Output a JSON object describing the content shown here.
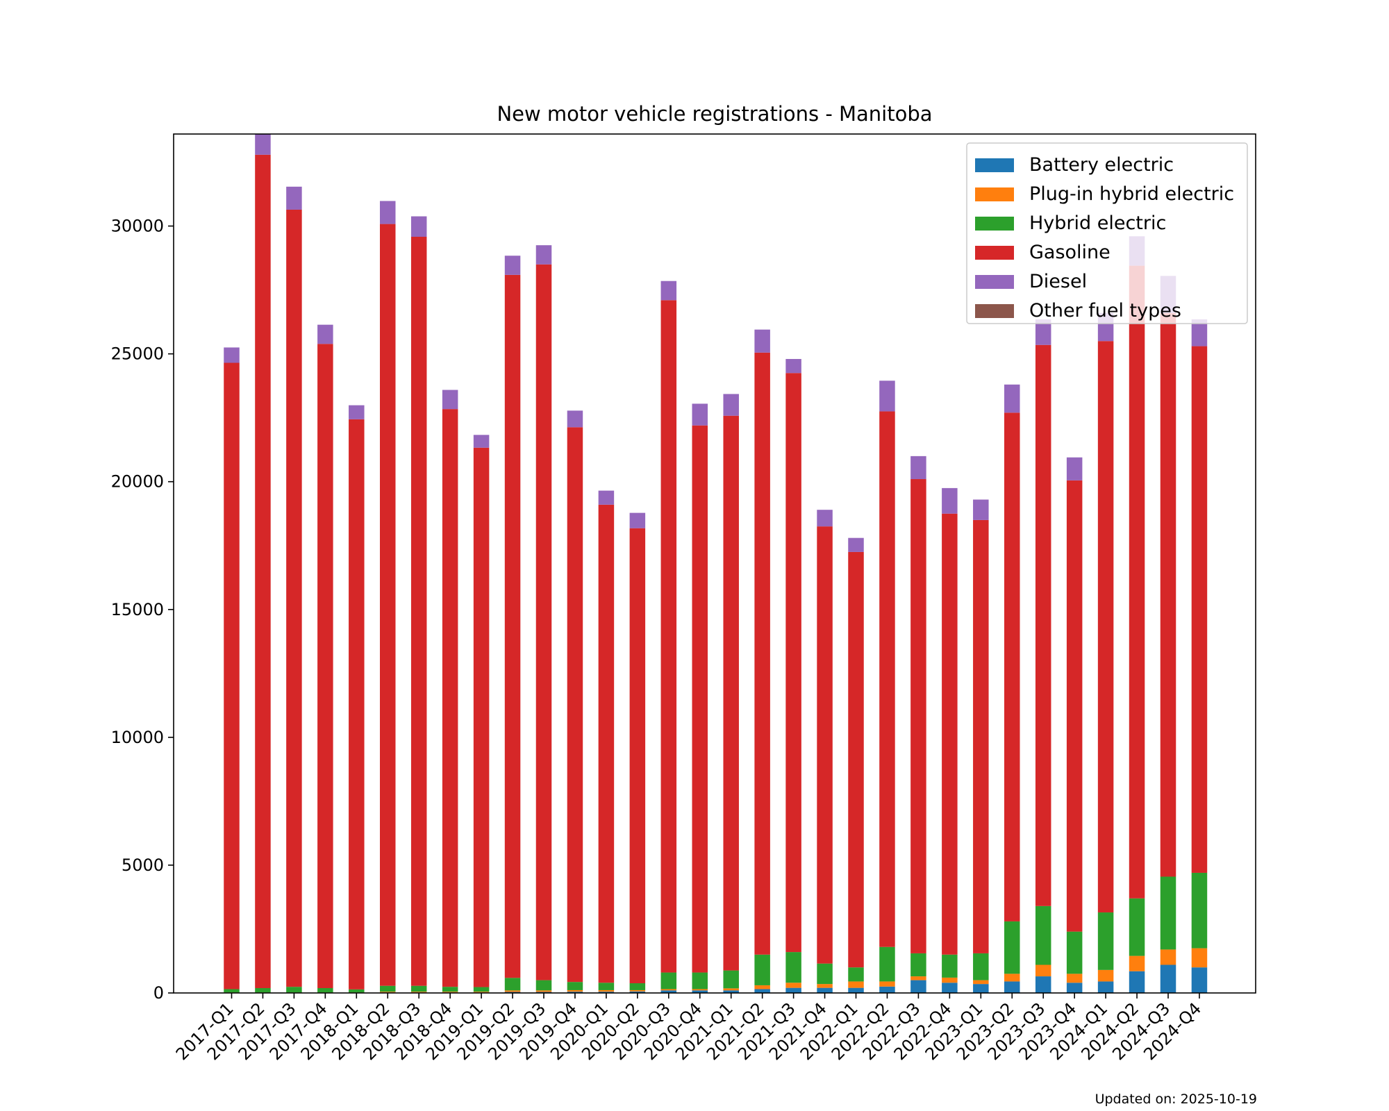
{
  "chart_data": {
    "type": "bar",
    "stacked": true,
    "title": "New motor vehicle registrations - Manitoba",
    "xlabel": "",
    "ylabel": "",
    "ylim": [
      0,
      33600
    ],
    "yticks": [
      0,
      5000,
      10000,
      15000,
      20000,
      25000,
      30000
    ],
    "legend_position": "top-right",
    "grid": false,
    "categories": [
      "2017-Q1",
      "2017-Q2",
      "2017-Q3",
      "2017-Q4",
      "2018-Q1",
      "2018-Q2",
      "2018-Q3",
      "2018-Q4",
      "2019-Q1",
      "2019-Q2",
      "2019-Q3",
      "2019-Q4",
      "2020-Q1",
      "2020-Q2",
      "2020-Q3",
      "2020-Q4",
      "2021-Q1",
      "2021-Q2",
      "2021-Q3",
      "2021-Q4",
      "2022-Q1",
      "2022-Q2",
      "2022-Q3",
      "2022-Q4",
      "2023-Q1",
      "2023-Q2",
      "2023-Q3",
      "2023-Q4",
      "2024-Q1",
      "2024-Q2",
      "2024-Q3",
      "2024-Q4"
    ],
    "series": [
      {
        "name": "Battery electric",
        "color": "#1f77b4",
        "values": [
          10,
          10,
          10,
          10,
          10,
          20,
          20,
          20,
          20,
          40,
          40,
          50,
          50,
          60,
          100,
          100,
          100,
          150,
          200,
          200,
          200,
          250,
          500,
          400,
          350,
          450,
          650,
          400,
          450,
          850,
          1100,
          1000
        ]
      },
      {
        "name": "Plug-in hybrid electric",
        "color": "#ff7f0e",
        "values": [
          10,
          10,
          10,
          10,
          10,
          30,
          30,
          30,
          30,
          60,
          60,
          60,
          60,
          50,
          50,
          50,
          80,
          150,
          200,
          150,
          250,
          200,
          150,
          200,
          150,
          300,
          450,
          350,
          450,
          600,
          600,
          750
        ]
      },
      {
        "name": "Hybrid electric",
        "color": "#2ca02c",
        "values": [
          130,
          170,
          220,
          170,
          120,
          230,
          230,
          190,
          180,
          490,
          400,
          320,
          290,
          270,
          650,
          650,
          700,
          1200,
          1200,
          800,
          550,
          1350,
          900,
          900,
          1050,
          2050,
          2300,
          1650,
          2250,
          2250,
          2850,
          2950
        ]
      },
      {
        "name": "Gasoline",
        "color": "#d62728",
        "values": [
          24500,
          32600,
          30400,
          25200,
          22300,
          29800,
          29300,
          22600,
          21100,
          27500,
          28000,
          21700,
          18700,
          17800,
          26300,
          21400,
          21700,
          23550,
          22650,
          17100,
          16250,
          20950,
          18550,
          17250,
          16950,
          19900,
          21950,
          17650,
          22350,
          24750,
          22050,
          20600
        ]
      },
      {
        "name": "Diesel",
        "color": "#9467bd",
        "values": [
          600,
          1350,
          900,
          750,
          550,
          900,
          800,
          750,
          500,
          750,
          750,
          650,
          550,
          600,
          750,
          850,
          850,
          900,
          550,
          650,
          550,
          1200,
          900,
          1000,
          800,
          1100,
          1000,
          900,
          1100,
          1150,
          1450,
          1050
        ]
      },
      {
        "name": "Other fuel types",
        "color": "#8c564b",
        "values": [
          0,
          0,
          0,
          0,
          0,
          0,
          0,
          0,
          0,
          0,
          0,
          0,
          0,
          0,
          0,
          0,
          0,
          0,
          0,
          0,
          0,
          0,
          0,
          0,
          0,
          0,
          0,
          0,
          0,
          0,
          0,
          0
        ]
      }
    ]
  },
  "footer": {
    "updated": "Updated on: 2025-10-19"
  }
}
